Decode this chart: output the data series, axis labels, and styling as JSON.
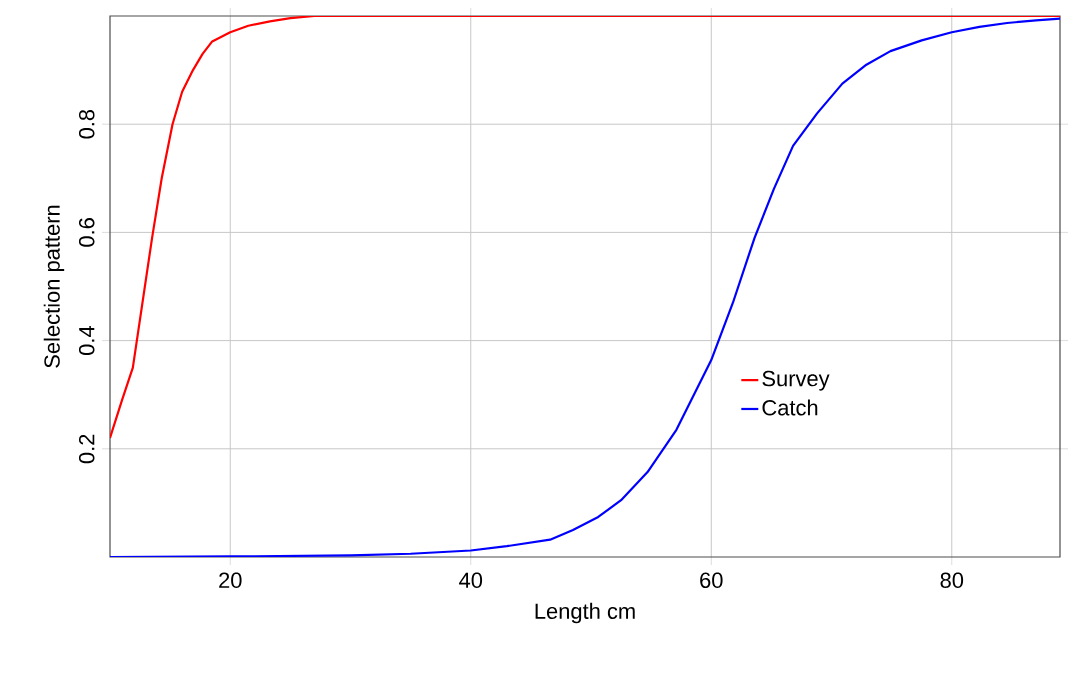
{
  "chart_data": {
    "type": "line",
    "xlabel": "Length cm",
    "ylabel": "Selection pattern",
    "xlim": [
      10,
      89
    ],
    "ylim": [
      0,
      1
    ],
    "xticks": [
      20,
      40,
      60,
      80
    ],
    "yticks": [
      0.2,
      0.4,
      0.6,
      0.8
    ],
    "grid": true,
    "legend": "right",
    "marker": "none",
    "line_style": "solid",
    "series": [
      {
        "name": "Survey",
        "color": "#ff0000",
        "x": [
          10,
          11,
          11.9,
          12.7,
          13.5,
          14.3,
          15.2,
          16,
          16.9,
          17.7,
          18.5,
          20,
          21.5,
          23.3,
          25,
          27,
          30,
          40,
          60,
          89
        ],
        "values": [
          0.22,
          0.29,
          0.35,
          0.47,
          0.59,
          0.7,
          0.8,
          0.86,
          0.9,
          0.93,
          0.953,
          0.97,
          0.982,
          0.99,
          0.996,
          1,
          1,
          1,
          1,
          1
        ]
      },
      {
        "name": "Catch",
        "color": "#0000ff",
        "x": [
          10,
          20,
          30,
          35,
          40,
          43,
          46.6,
          48.5,
          50.6,
          52.5,
          54.7,
          57.1,
          60,
          61.8,
          63.6,
          65.2,
          66.8,
          68.8,
          70.9,
          72.9,
          74.9,
          77.5,
          80,
          82.3,
          84.6,
          87,
          89
        ],
        "values": [
          0,
          0.001,
          0.003,
          0.006,
          0.012,
          0.02,
          0.032,
          0.05,
          0.074,
          0.105,
          0.157,
          0.235,
          0.364,
          0.47,
          0.59,
          0.68,
          0.76,
          0.82,
          0.875,
          0.91,
          0.935,
          0.955,
          0.97,
          0.98,
          0.987,
          0.992,
          0.995
        ]
      }
    ]
  }
}
